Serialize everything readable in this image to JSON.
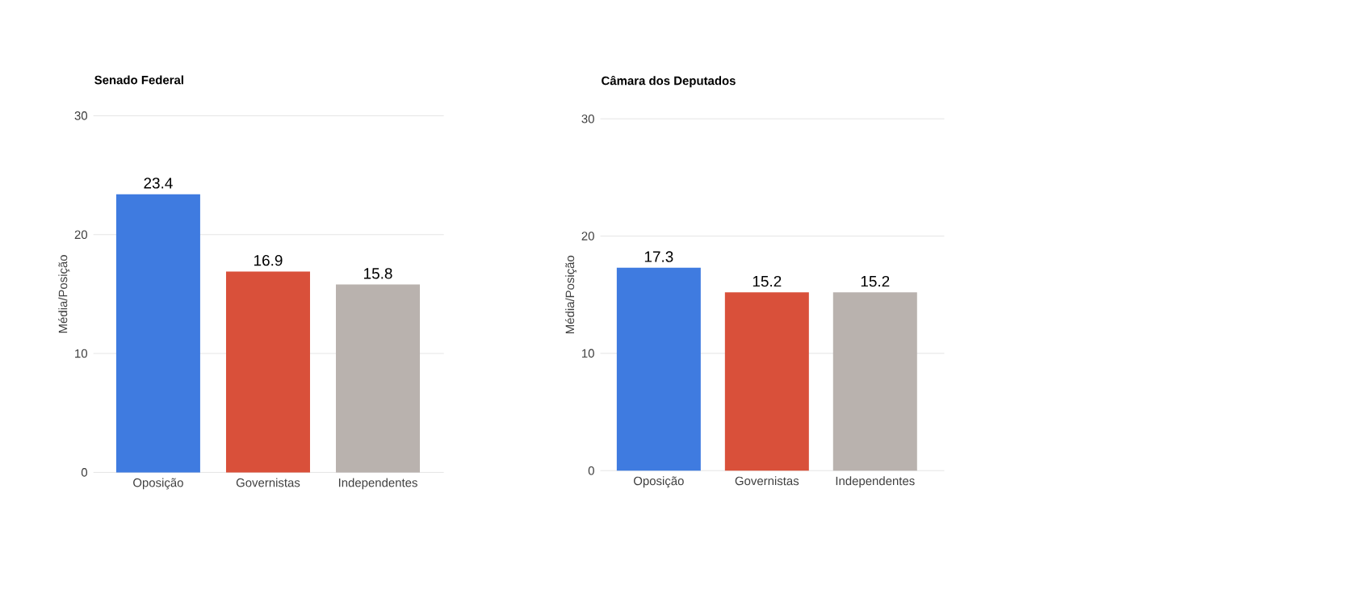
{
  "chart_data": [
    {
      "type": "bar",
      "title": "Senado Federal",
      "ylabel": "Média/Posição",
      "categories": [
        "Oposição",
        "Governistas",
        "Independentes"
      ],
      "values": [
        23.4,
        16.9,
        15.8
      ],
      "colors": [
        "#3f7be0",
        "#d9503a",
        "#b9b2ae"
      ],
      "ylim": [
        0,
        30
      ],
      "yticks": [
        0,
        10,
        20,
        30
      ],
      "grid": "y",
      "data_labels": true
    },
    {
      "type": "bar",
      "title": "Câmara dos Deputados",
      "ylabel": "Média/Posição",
      "categories": [
        "Oposição",
        "Governistas",
        "Independentes"
      ],
      "values": [
        17.3,
        15.2,
        15.2
      ],
      "colors": [
        "#3f7be0",
        "#d9503a",
        "#b9b2ae"
      ],
      "ylim": [
        0,
        30
      ],
      "yticks": [
        0,
        10,
        20,
        30
      ],
      "grid": "y",
      "data_labels": true
    }
  ]
}
